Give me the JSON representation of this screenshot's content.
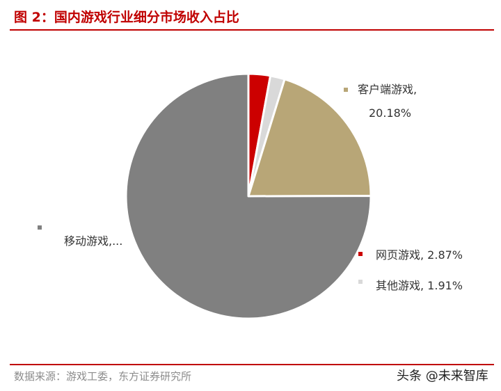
{
  "header": {
    "title": "图 2：国内游戏行业细分市场收入占比"
  },
  "chart_data": {
    "type": "pie",
    "title": "",
    "slices": [
      {
        "name": "网页游戏",
        "value": 2.87,
        "color": "#cc0000",
        "label": "网页游戏, 2.87%"
      },
      {
        "name": "其他游戏",
        "value": 1.91,
        "color": "#d9d9d9",
        "label": "其他游戏, 1.91%"
      },
      {
        "name": "客户端游戏",
        "value": 20.18,
        "color": "#b8a677",
        "label_line1": "客户端游戏,",
        "label_line2": "20.18%"
      },
      {
        "name": "移动游戏",
        "value": 75.04,
        "color": "#808080",
        "label": "移动游戏,..."
      }
    ],
    "start_angle_deg": 0,
    "direction": "clockwise"
  },
  "footer": {
    "source": "数据来源：游戏工委，东方证券研究所",
    "watermark": "头条 @未来智库"
  }
}
